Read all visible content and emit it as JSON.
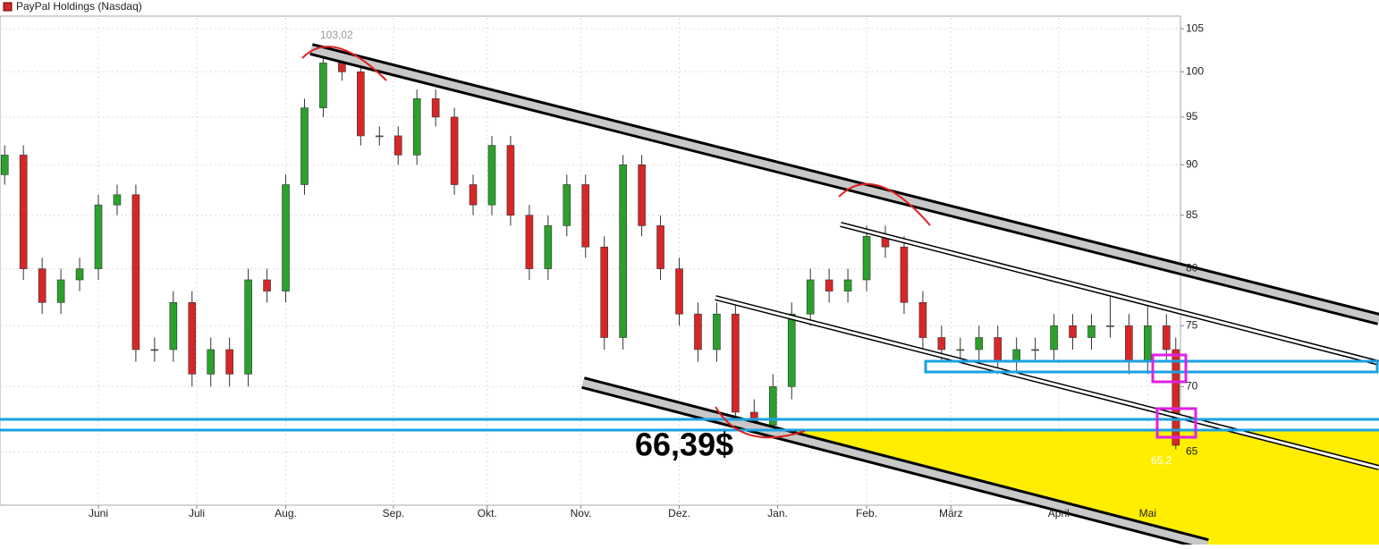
{
  "chart_data": {
    "type": "candlestick",
    "title": "PayPal Holdings (Nasdaq)",
    "annotations": [
      "103,02",
      "65,2",
      "66,39$"
    ],
    "up_color": "#2ca02c",
    "down_color": "#d62728",
    "xlim": [
      0,
      252
    ],
    "xticks": [
      {
        "value": 21,
        "label": "Juni"
      },
      {
        "value": 42,
        "label": "Juli"
      },
      {
        "value": 61,
        "label": "Aug."
      },
      {
        "value": 84,
        "label": "Sep."
      },
      {
        "value": 104,
        "label": "Okt."
      },
      {
        "value": 124,
        "label": "Nov."
      },
      {
        "value": 145,
        "label": "Dez."
      },
      {
        "value": 166,
        "label": "Jan."
      },
      {
        "value": 185,
        "label": "Feb."
      },
      {
        "value": 203,
        "label": "März"
      },
      {
        "value": 226,
        "label": "April"
      },
      {
        "value": 245,
        "label": "Mai"
      }
    ],
    "ylim": [
      61.2,
      106.3
    ],
    "yticks": [
      65,
      70,
      75,
      80,
      85,
      90,
      95,
      100,
      105
    ],
    "log_scale": true,
    "grid": true,
    "x": [
      1,
      5,
      9,
      13,
      17,
      21,
      25,
      29,
      33,
      37,
      41,
      45,
      49,
      53,
      57,
      61,
      65,
      69,
      73,
      77,
      81,
      85,
      89,
      93,
      97,
      101,
      105,
      109,
      113,
      117,
      121,
      125,
      129,
      133,
      137,
      141,
      145,
      149,
      153,
      157,
      161,
      165,
      169,
      173,
      177,
      181,
      185,
      189,
      193,
      197,
      201,
      205,
      209,
      213,
      217,
      221,
      225,
      229,
      233,
      237,
      241,
      245,
      249,
      251
    ],
    "open": [
      89,
      91,
      80,
      77,
      79,
      80,
      86,
      87,
      73,
      73,
      77,
      71,
      73,
      71,
      79,
      78,
      88,
      96,
      101,
      100,
      93,
      93,
      91,
      97,
      95,
      88,
      86,
      92,
      85,
      80,
      84,
      88,
      82,
      74,
      90,
      84,
      80,
      76,
      73,
      76,
      68,
      67,
      70,
      76,
      79,
      78,
      79,
      83,
      82,
      77,
      74,
      73,
      73,
      74,
      72,
      73,
      73,
      75,
      74,
      75,
      75,
      72,
      75,
      73
    ],
    "high": [
      92,
      92,
      81,
      80,
      81,
      87,
      88,
      88,
      74,
      78,
      78,
      74,
      74,
      80,
      80,
      89,
      97,
      103.02,
      102,
      101,
      94,
      94,
      98,
      98,
      96,
      89,
      93,
      93,
      86,
      85,
      89,
      89,
      83,
      91,
      91,
      85,
      81,
      77,
      77,
      77,
      69,
      71,
      77,
      80,
      80,
      80,
      84,
      84,
      83,
      78,
      75,
      74,
      75,
      75,
      74,
      74,
      76,
      76,
      76,
      78,
      76,
      77,
      76,
      74
    ],
    "low": [
      88,
      79,
      76,
      76,
      78,
      79,
      85,
      72,
      72,
      72,
      70,
      70,
      70,
      70,
      77,
      77,
      87,
      95,
      99,
      92,
      92,
      90,
      90,
      94,
      87,
      85,
      85,
      84,
      79,
      79,
      83,
      81,
      73,
      73,
      83,
      79,
      75,
      72,
      72,
      67,
      66.39,
      66,
      69,
      75,
      77,
      77,
      78,
      81,
      76,
      73,
      72,
      72,
      72,
      71,
      71,
      72,
      72,
      73,
      73,
      74,
      71,
      71,
      72,
      65.2
    ],
    "close": [
      91,
      80,
      77,
      79,
      80,
      86,
      87,
      73,
      73,
      77,
      71,
      73,
      71,
      79,
      78,
      88,
      96,
      101,
      100,
      93,
      93,
      91,
      97,
      95,
      88,
      86,
      92,
      85,
      80,
      84,
      88,
      82,
      74,
      90,
      84,
      80,
      76,
      73,
      76,
      68,
      67,
      70,
      76,
      79,
      78,
      79,
      83,
      82,
      77,
      74,
      73,
      73,
      74,
      72,
      73,
      73,
      75,
      74,
      75,
      75,
      72,
      75,
      73,
      65.5
    ]
  }
}
